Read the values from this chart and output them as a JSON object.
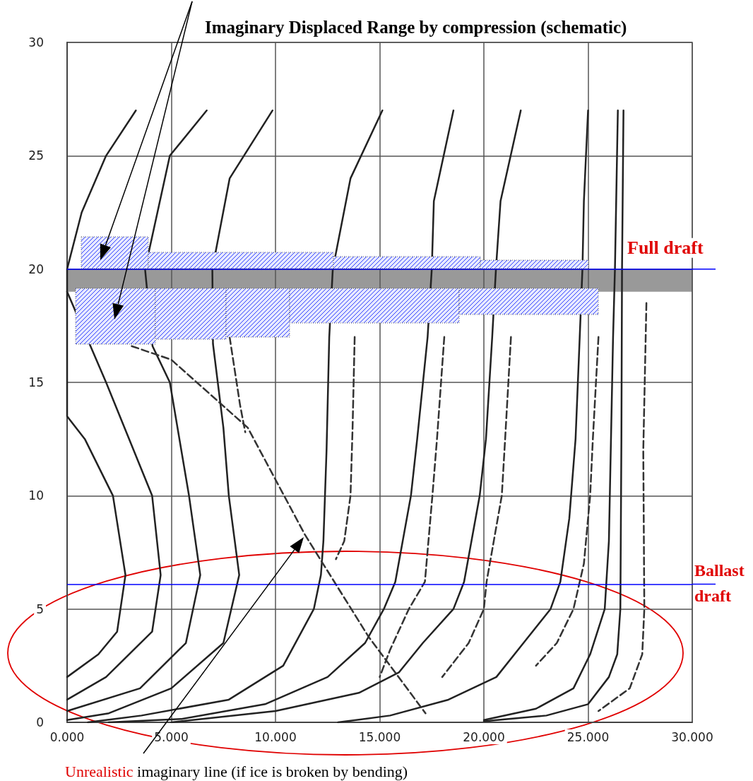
{
  "chart_data": {
    "type": "line",
    "annotations": [
      "Imaginary Displaced Range by compression (schematic)",
      "Unrealistic imaginary line (if ice is broken by bending)"
    ],
    "xlim": [
      0,
      30
    ],
    "ylim": [
      0,
      30
    ],
    "xticks": [
      {
        "value": 0,
        "label": "0.000"
      },
      {
        "value": 5,
        "label": "5.000"
      },
      {
        "value": 10,
        "label": "10.000"
      },
      {
        "value": 15,
        "label": "15.000"
      },
      {
        "value": 20,
        "label": "20.000"
      },
      {
        "value": 25,
        "label": "25.000"
      },
      {
        "value": 30,
        "label": "30.000"
      }
    ],
    "yticks": [
      0,
      5,
      10,
      15,
      20,
      25,
      30
    ],
    "grid": true,
    "marker": "none",
    "ref_lines": [
      {
        "axis": "y",
        "value": 20,
        "label": "Full draft",
        "color": "#0000ff"
      },
      {
        "axis": "y",
        "value": 6.1,
        "label": "Ballast draft",
        "color": "#0000ff"
      }
    ],
    "bands": [
      {
        "axis": "y",
        "from": 19,
        "to": 20,
        "color": "#555555"
      }
    ],
    "series": [
      {
        "color": "#222222",
        "line_style": "solid",
        "x": [
          3.3,
          1.87,
          0.7,
          0,
          0,
          0.85,
          2.2,
          2.8,
          2.4,
          1.5,
          0
        ],
        "values": [
          27,
          25,
          22.5,
          20,
          13.5,
          12.5,
          10,
          6.5,
          4,
          3,
          2
        ]
      },
      {
        "color": "#222222",
        "line_style": "solid",
        "x": [
          0,
          1.87,
          4.08,
          4.49,
          4.08,
          1.87,
          0
        ],
        "values": [
          19,
          15,
          10,
          6.5,
          4,
          2,
          1
        ]
      },
      {
        "color": "#222222",
        "line_style": "solid",
        "x": [
          6.7,
          4.93,
          3.74,
          4.1,
          4.93,
          5.85,
          6.39,
          5.7,
          3.5,
          0
        ],
        "values": [
          27,
          25,
          20,
          16.6,
          15,
          10,
          6.5,
          3.5,
          1.5,
          0.5
        ]
      },
      {
        "color": "#222222",
        "line_style": "solid",
        "x": [
          9.86,
          7.8,
          6.97,
          7,
          7.5,
          7.76,
          8.26,
          7.5,
          5,
          2,
          0
        ],
        "values": [
          27,
          24,
          20,
          16.7,
          13,
          10,
          6.5,
          3.5,
          1.5,
          0.4,
          0.1
        ]
      },
      {
        "color": "#222222",
        "line_style": "solid",
        "x": [
          15.13,
          13.6,
          12.75,
          12.58,
          12.45,
          12.3,
          12.18,
          11.84,
          10.37,
          7.76,
          3.57,
          1
        ],
        "values": [
          27,
          24,
          20,
          17,
          12,
          8,
          6.5,
          5,
          2.5,
          1,
          0.3,
          0
        ]
      },
      {
        "color": "#222222",
        "line_style": "solid",
        "x": [
          18.54,
          17.6,
          17.5,
          17.3,
          16.8,
          16.5,
          15.75,
          15.2,
          14.3,
          12.5,
          9.5,
          5.5,
          2
        ],
        "values": [
          27,
          23,
          20,
          17,
          12.5,
          10,
          6.2,
          5,
          3.5,
          2,
          0.8,
          0.15,
          0
        ]
      },
      {
        "color": "#222222",
        "line_style": "solid",
        "x": [
          21.77,
          20.8,
          20.58,
          20.4,
          20.1,
          19.8,
          19.05,
          18.54,
          17.07,
          15.92,
          14,
          10,
          5
        ],
        "values": [
          27,
          23,
          20,
          17,
          12.5,
          10,
          6.2,
          5,
          3.5,
          2.2,
          1.3,
          0.5,
          0
        ]
      },
      {
        "color": "#222222",
        "line_style": "solid",
        "x": [
          25,
          24.8,
          24.73,
          24.6,
          24.4,
          24.1,
          23.67,
          23.2,
          21.9,
          20.6,
          18.3,
          15.5,
          13
        ],
        "values": [
          27,
          23,
          20,
          17,
          12.5,
          9,
          6.2,
          5,
          3.5,
          2,
          1,
          0.3,
          0
        ]
      },
      {
        "color": "#222222",
        "line_style": "solid",
        "x": [
          26.43,
          26.29,
          26.2,
          26.1,
          26,
          25.8,
          25.1,
          24.3,
          22.5,
          20
        ],
        "values": [
          27,
          20,
          17,
          12.5,
          8,
          5,
          3,
          1.5,
          0.6,
          0.1
        ]
      },
      {
        "color": "#222222",
        "line_style": "solid",
        "x": [
          26.7,
          26.63,
          26.6,
          26.55,
          26.4,
          26,
          25,
          23,
          20
        ],
        "values": [
          27,
          20,
          12.5,
          5,
          3,
          2,
          0.8,
          0.3,
          0.05
        ]
      },
      {
        "color": "#333333",
        "line_style": "dashed",
        "x": [
          3.1,
          5,
          8.67,
          11.4,
          14.45,
          17.2
        ],
        "values": [
          16.6,
          16,
          13,
          8.3,
          3.8,
          0.4
        ]
      },
      {
        "color": "#333333",
        "line_style": "dashed",
        "x": [
          7.8,
          8.3,
          8.55
        ],
        "values": [
          17,
          14,
          12.8
        ]
      },
      {
        "color": "#333333",
        "line_style": "dashed",
        "x": [
          13.8,
          13.7,
          13.6,
          13.3,
          12.9
        ],
        "values": [
          17,
          13,
          10,
          8,
          7.2
        ]
      },
      {
        "color": "#333333",
        "line_style": "dashed",
        "x": [
          18.1,
          17.75,
          17.53,
          17.17,
          16.4,
          15.5,
          15
        ],
        "values": [
          17,
          12.5,
          10,
          6.2,
          5,
          3.2,
          2
        ]
      },
      {
        "color": "#333333",
        "line_style": "dashed",
        "x": [
          21.3,
          21.02,
          20.86,
          20.13,
          20,
          19.27,
          18
        ],
        "values": [
          17,
          12.5,
          10,
          6.2,
          5,
          3.5,
          2
        ]
      },
      {
        "color": "#333333",
        "line_style": "dashed",
        "x": [
          25.5,
          25.23,
          25.1,
          24.8,
          24.3,
          23.5,
          22.5
        ],
        "values": [
          17,
          12.5,
          10,
          7,
          5,
          3.5,
          2.5
        ]
      },
      {
        "color": "#333333",
        "line_style": "dashed",
        "x": [
          27.8,
          27.65,
          27.7,
          27.6,
          27,
          25.5
        ],
        "values": [
          18.5,
          12,
          5,
          3,
          1.5,
          0.5
        ]
      }
    ]
  }
}
